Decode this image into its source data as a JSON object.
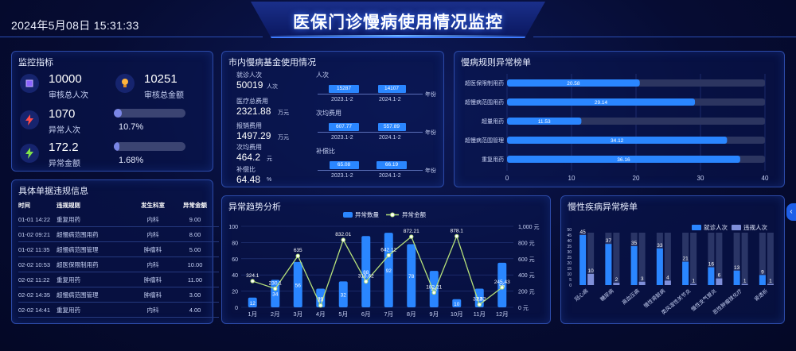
{
  "header": {
    "datetime": "2024年5月08日 15:31:33",
    "title": "医保门诊慢病使用情况监控"
  },
  "monitor": {
    "title": "监控指标",
    "kpis": [
      {
        "value": "10000",
        "label": "审核总人次",
        "icon": "cube-icon"
      },
      {
        "value": "10251",
        "label": "审核总金额",
        "icon": "bulb-icon"
      },
      {
        "value": "1070",
        "label": "异常人次",
        "icon": "bolt-icon"
      },
      {
        "value": "172.2",
        "label": "异常金额",
        "icon": "bolt-icon"
      }
    ],
    "progress": [
      {
        "label": "10.7%",
        "fraction": 0.107
      },
      {
        "label": "1.68%",
        "fraction": 0.0168
      }
    ]
  },
  "detail": {
    "title": "具体单据违规信息",
    "columns": [
      "时间",
      "违规规则",
      "发生科室",
      "异常金额"
    ],
    "rows": [
      [
        "01-01 14:22",
        "重复用药",
        "内科",
        "9.00"
      ],
      [
        "01-02 09:21",
        "超慢病范围用药",
        "内科",
        "8.00"
      ],
      [
        "01-02 11:35",
        "超慢病范围管理",
        "肿瘤科",
        "5.00"
      ],
      [
        "02-02 10:53",
        "超医保限制用药",
        "内科",
        "10.00"
      ],
      [
        "02-02 11:22",
        "重复用药",
        "肿瘤科",
        "11.00"
      ],
      [
        "02-02 14:35",
        "超慢病范围管理",
        "肿瘤科",
        "3.00"
      ],
      [
        "02-02 14:41",
        "重复用药",
        "内科",
        "4.00"
      ]
    ]
  },
  "fund": {
    "title": "市内慢病基金使用情况",
    "stats": [
      {
        "label": "就诊人次",
        "value": "50019",
        "unit": "人次"
      },
      {
        "label": "医疗总费用",
        "value": "2321.88",
        "unit": "万元"
      },
      {
        "label": "报销费用",
        "value": "1497.29",
        "unit": "万元"
      },
      {
        "label": "次均费用",
        "value": "464.2",
        "unit": "元"
      },
      {
        "label": "补偿比",
        "value": "64.48",
        "unit": "%"
      }
    ],
    "mini_charts": [
      {
        "title": "人次",
        "values": [
          "15287",
          "14107"
        ],
        "fractions": [
          0.8,
          0.74
        ]
      },
      {
        "title": "次均费用",
        "values": [
          "607.77",
          "557.89"
        ],
        "fractions": [
          0.8,
          0.74
        ]
      },
      {
        "title": "补偿比",
        "values": [
          "65.08",
          "66.19"
        ],
        "fractions": [
          0.78,
          0.8
        ]
      }
    ],
    "periods": [
      "2023.1-2",
      "2024.1-2"
    ],
    "unit": "年份"
  },
  "ranking": {
    "title": "慢病规则异常榜单",
    "chart_data": {
      "type": "bar",
      "orientation": "horizontal",
      "categories": [
        "超医保限制用药",
        "超慢病范围用药",
        "超量用药",
        "超慢病范围管理",
        "重复用药"
      ],
      "values": [
        20.58,
        29.14,
        11.53,
        34.12,
        36.16
      ],
      "xlim": [
        0,
        40
      ],
      "ticks": [
        "0",
        "10",
        "20",
        "30",
        "40"
      ]
    }
  },
  "trend": {
    "title": "异常趋势分析",
    "chart_data": {
      "type": "bar",
      "categories": [
        "1月",
        "2月",
        "3月",
        "4月",
        "5月",
        "6月",
        "7月",
        "8月",
        "9月",
        "10月",
        "11月",
        "12月"
      ],
      "series": [
        {
          "name": "异常数量",
          "type": "bar",
          "values": [
            12,
            34,
            56,
            23,
            32,
            88,
            92,
            78,
            45,
            10,
            23,
            55
          ],
          "labels": [
            "12",
            "34",
            "56",
            "23",
            "32",
            "88",
            "92",
            "78",
            "45",
            "10",
            "23",
            "55"
          ]
        },
        {
          "name": "异常金额",
          "type": "line",
          "values": [
            324.1,
            230.1,
            635,
            23,
            832.01,
            318.62,
            642.12,
            872.21,
            182.21,
            878.1,
            33.82,
            245.43
          ],
          "labels": [
            "324.1",
            "230.1",
            "635",
            "23",
            "832.01",
            "318.62",
            "642.12",
            "872.21",
            "182.21",
            "878.1",
            "33.82",
            "245.43"
          ]
        }
      ],
      "ylim_left": [
        0,
        100
      ],
      "ylim_right": [
        0,
        1000
      ],
      "left_ticks": [
        "0",
        "20",
        "40",
        "60",
        "80",
        "100"
      ],
      "right_ticks": [
        "0 元",
        "200 元",
        "400 元",
        "600 元",
        "800 元",
        "1,000 元"
      ],
      "colors": {
        "bar": "#2a86ff",
        "line": "#b5e07a"
      }
    }
  },
  "disease": {
    "title": "慢性疾病异常榜单",
    "chart_data": {
      "type": "bar",
      "categories": [
        "冠心病",
        "糖尿病",
        "高血压病",
        "慢性肾脏病",
        "类风湿性关节炎",
        "慢性支气管炎",
        "恶性肿瘤放化疗",
        "肾透析"
      ],
      "series": [
        {
          "name": "就诊人次",
          "values": [
            45,
            37,
            35,
            33,
            21,
            16,
            13,
            9
          ]
        },
        {
          "name": "违规人次",
          "values": [
            10,
            2,
            3,
            4,
            1,
            6,
            1,
            1
          ]
        }
      ],
      "ylim": [
        0,
        50
      ],
      "ticks": [
        "0",
        "5",
        "10",
        "15",
        "20",
        "25",
        "30",
        "35",
        "40",
        "45",
        "50"
      ],
      "colors": {
        "a": "#2a86ff",
        "b": "#7f8fd9"
      }
    }
  }
}
